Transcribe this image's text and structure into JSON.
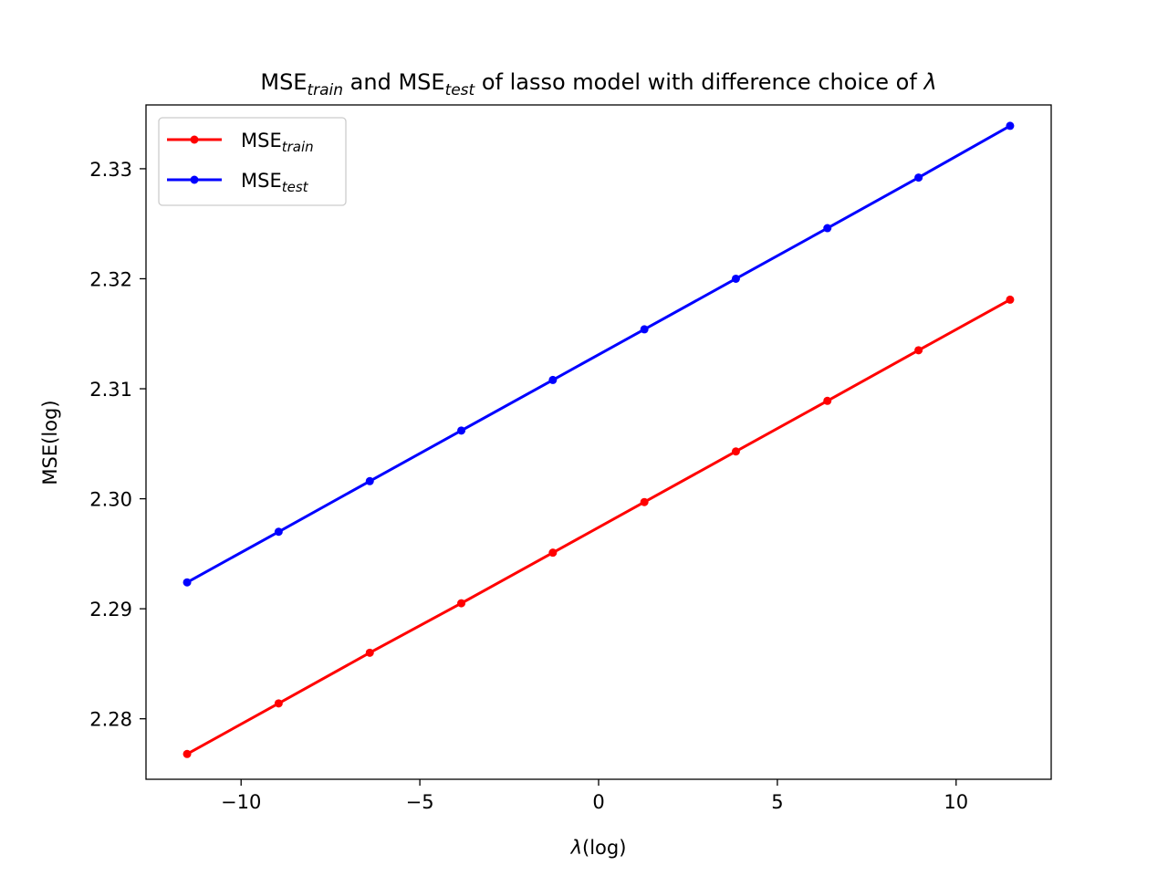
{
  "chart_data": {
    "type": "line",
    "title": {
      "parts": [
        {
          "text": "MSE",
          "sub": "train"
        },
        {
          "text": " and MSE",
          "sub": "test"
        },
        {
          "text": " of lasso model with difference choice of ",
          "italic": "λ"
        }
      ]
    },
    "xlabel": {
      "italic": "λ",
      "text": "(log)"
    },
    "ylabel": "MSE(log)",
    "xlim": [
      -12.66,
      12.66
    ],
    "ylim": [
      2.2745,
      2.3358
    ],
    "x_ticks": [
      -10,
      -5,
      0,
      5,
      10
    ],
    "x_tick_labels": [
      "−10",
      "−5",
      "0",
      "5",
      "10"
    ],
    "y_ticks": [
      2.28,
      2.29,
      2.3,
      2.31,
      2.32,
      2.33
    ],
    "y_tick_labels": [
      "2.28",
      "2.29",
      "2.30",
      "2.31",
      "2.32",
      "2.33"
    ],
    "grid": false,
    "legend_position": "top-left",
    "x": [
      -11.51,
      -8.95,
      -6.4,
      -3.84,
      -1.28,
      1.28,
      3.84,
      6.4,
      8.95,
      11.51
    ],
    "series": [
      {
        "name": {
          "text": "MSE",
          "sub": "train"
        },
        "color": "#ff0000",
        "values": [
          2.2768,
          2.2814,
          2.286,
          2.2905,
          2.2951,
          2.2997,
          2.3043,
          2.3089,
          2.3135,
          2.3181
        ]
      },
      {
        "name": {
          "text": "MSE",
          "sub": "test"
        },
        "color": "#0000ff",
        "values": [
          2.2924,
          2.297,
          2.3016,
          2.3062,
          2.3108,
          2.3154,
          2.32,
          2.3246,
          2.3292,
          2.3339
        ]
      }
    ]
  }
}
